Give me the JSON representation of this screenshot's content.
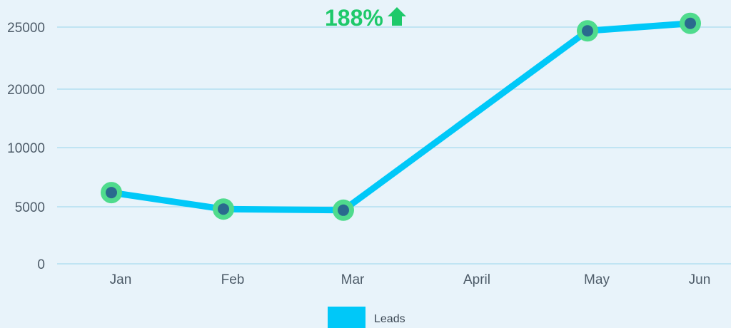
{
  "chart_data": {
    "type": "line",
    "categories": [
      "Jan",
      "Feb",
      "Mar",
      "April",
      "May",
      "Jun"
    ],
    "series": [
      {
        "name": "Leads",
        "values": [
          6200,
          4800,
          4700,
          null,
          24700,
          25300
        ]
      }
    ],
    "y_ticks": [
      "0",
      "5000",
      "10000",
      "20000",
      "25000"
    ],
    "annotation": {
      "text": "188%",
      "icon": "arrow-up-icon"
    },
    "legend": {
      "position": "bottom-center",
      "label": "Leads"
    },
    "grid": true,
    "colors": {
      "line": "#00c8f8",
      "marker_fill": "#2a6a8e",
      "marker_ring": "#4fdb8d",
      "annotation": "#1ec96a",
      "background": "#e8f3fa"
    }
  }
}
